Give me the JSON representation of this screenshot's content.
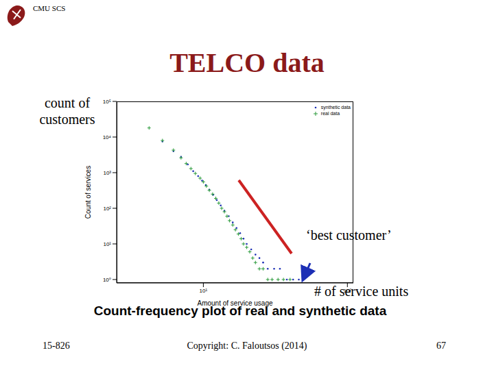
{
  "header": "CMU SCS",
  "slide_title": "TELCO data",
  "annotations": [
    "count of customers",
    "‘best customer’",
    "# of service units"
  ],
  "footer": {
    "left": "15-826",
    "center": "Copyright: C. Faloutsos (2014)",
    "right": "67"
  },
  "chart_data": {
    "type": "scatter",
    "caption": "Count-frequency plot of real and synthetic data",
    "x_label": "Amount of service usage",
    "y_label": "Count of services",
    "log": true,
    "grid": false,
    "legend": "upper right",
    "xlim": [
      2.5,
      110
    ],
    "xticks": [
      {
        "value": 10,
        "label": "10¹"
      },
      {
        "value": 100,
        "label": "10²"
      }
    ],
    "ylim": [
      0.8,
      100000
    ],
    "yticks": [
      {
        "value": 1,
        "label": "10⁰"
      },
      {
        "value": 10,
        "label": "10¹"
      },
      {
        "value": 100,
        "label": "10²"
      },
      {
        "value": 1000,
        "label": "10³"
      },
      {
        "value": 10000,
        "label": "10⁴"
      },
      {
        "value": 100000,
        "label": "10⁵"
      }
    ],
    "series": [
      {
        "name": "synthetic data",
        "color": "#1c2fb5",
        "marker": "dot",
        "x": [
          5.2,
          6.2,
          7,
          7.8,
          8.5,
          9.2,
          9.8,
          10.4,
          11,
          11.7,
          12.4,
          13.2,
          14,
          15,
          16,
          17,
          18,
          19,
          20,
          21.5,
          23,
          24.5,
          26,
          28,
          31,
          34,
          38,
          42,
          46
        ],
        "values": [
          7500,
          4000,
          2800,
          1700,
          1100,
          800,
          600,
          450,
          330,
          240,
          170,
          120,
          85,
          60,
          40,
          28,
          20,
          14,
          10,
          7,
          5,
          4,
          3,
          2,
          2,
          2,
          1,
          1,
          1
        ]
      },
      {
        "name": "real data",
        "color": "#2a9a3a",
        "marker": "plus",
        "x": [
          4.2,
          5.2,
          6.2,
          7,
          7.6,
          8.2,
          8.8,
          9.5,
          10,
          10.5,
          11,
          11.6,
          12.2,
          12.8,
          13.4,
          14,
          14.6,
          15.2,
          16,
          16.7,
          17.5,
          18.3,
          19,
          20,
          21,
          22,
          23,
          24.5,
          26,
          28,
          30,
          33,
          36,
          40
        ],
        "values": [
          18000,
          8000,
          4300,
          2600,
          1800,
          1300,
          950,
          700,
          550,
          420,
          320,
          250,
          190,
          140,
          100,
          80,
          60,
          45,
          34,
          25,
          19,
          14,
          10,
          8,
          6,
          4,
          3,
          2,
          2,
          1,
          1,
          1,
          1,
          1
        ]
      }
    ]
  }
}
